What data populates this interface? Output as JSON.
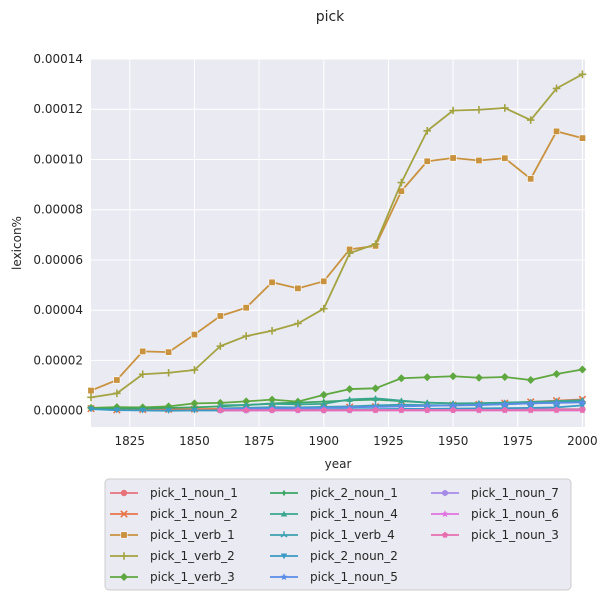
{
  "chart_data": {
    "type": "line",
    "title": "pick",
    "xlabel": "year",
    "ylabel": "lexicon%",
    "xlim": [
      1810,
      2001
    ],
    "ylim": [
      -6.5e-06,
      0.00014
    ],
    "x_ticks": [
      1825,
      1850,
      1875,
      1900,
      1925,
      1950,
      1975,
      2000
    ],
    "y_ticks": [
      0,
      2e-05,
      4e-05,
      6e-05,
      8e-05,
      0.0001,
      0.00012,
      0.00014
    ],
    "y_tick_labels": [
      "0.00000",
      "0.00002",
      "0.00004",
      "0.00006",
      "0.00008",
      "0.00010",
      "0.00012",
      "0.00014"
    ],
    "x_tick_labels": [
      "1825",
      "1850",
      "1875",
      "1900",
      "1925",
      "1950",
      "1975",
      "2000"
    ],
    "grid": true,
    "legend_position": "bottom",
    "x": [
      1810,
      1820,
      1830,
      1840,
      1850,
      1860,
      1870,
      1880,
      1890,
      1900,
      1910,
      1920,
      1930,
      1940,
      1950,
      1960,
      1970,
      1980,
      1990,
      2000
    ],
    "series": [
      {
        "name": "pick_1_noun_1",
        "color": "#e8727a",
        "marker": "circle",
        "values": [
          null,
          null,
          null,
          null,
          null,
          null,
          null,
          null,
          null,
          2e-07,
          3e-07,
          3e-07,
          4e-07,
          4e-07,
          4e-07,
          5e-07,
          5e-07,
          5e-07,
          6e-07,
          6e-07
        ]
      },
      {
        "name": "pick_1_noun_2",
        "color": "#e8754a",
        "marker": "x",
        "values": [
          8e-07,
          3e-07,
          4e-07,
          5e-07,
          6e-07,
          7e-07,
          8e-07,
          9e-07,
          1e-06,
          1.2e-06,
          1.4e-06,
          1.6e-06,
          1.8e-06,
          2e-06,
          2.2e-06,
          2.5e-06,
          3e-06,
          3.5e-06,
          4e-06,
          4.5e-06
        ]
      },
      {
        "name": "pick_1_verb_1",
        "color": "#c8923e",
        "marker": "square",
        "values": [
          8e-06,
          1.22e-05,
          2.36e-05,
          2.33e-05,
          3.03e-05,
          3.77e-05,
          4.1e-05,
          5.11e-05,
          4.87e-05,
          5.15e-05,
          6.42e-05,
          6.56e-05,
          8.74e-05,
          9.93e-05,
          0.0001006,
          9.96e-05,
          0.0001005,
          9.23e-05,
          0.0001112,
          0.0001085
        ]
      },
      {
        "name": "pick_1_verb_2",
        "color": "#a3a342",
        "marker": "plus",
        "values": [
          5.3e-06,
          6.9e-06,
          1.45e-05,
          1.51e-05,
          1.62e-05,
          2.57e-05,
          2.97e-05,
          3.18e-05,
          3.47e-05,
          4.06e-05,
          6.27e-05,
          6.63e-05,
          9.08e-05,
          0.0001114,
          0.0001195,
          0.0001198,
          0.0001205,
          0.0001157,
          0.0001283,
          0.0001339
        ]
      },
      {
        "name": "pick_1_verb_3",
        "color": "#5ea83f",
        "marker": "diamond",
        "values": [
          1.1e-06,
          1.4e-06,
          1.3e-06,
          1.7e-06,
          2.9e-06,
          3.1e-06,
          3.7e-06,
          4.4e-06,
          3.6e-06,
          6.3e-06,
          8.6e-06,
          8.9e-06,
          1.29e-05,
          1.33e-05,
          1.37e-05,
          1.31e-05,
          1.34e-05,
          1.22e-05,
          1.46e-05,
          1.64e-05
        ]
      },
      {
        "name": "pick_2_noun_1",
        "color": "#3aa564",
        "marker": "thin_diamond",
        "values": [
          8e-07,
          9e-07,
          9e-07,
          1.1e-06,
          1.3e-06,
          1.7e-06,
          2.2e-06,
          2.9e-06,
          3.2e-06,
          3.6e-06,
          4.1e-06,
          4.4e-06,
          3.8e-06,
          3.2e-06,
          2.9e-06,
          2.9e-06,
          3.1e-06,
          3.3e-06,
          3.6e-06,
          3.8e-06
        ]
      },
      {
        "name": "pick_1_noun_4",
        "color": "#39a68f",
        "marker": "triangle-up",
        "values": [
          null,
          null,
          null,
          null,
          null,
          2.1e-06,
          2.3e-06,
          2.7e-06,
          2.5e-06,
          2.7e-06,
          4.5e-06,
          4.9e-06,
          4e-06,
          3.2e-06,
          2.9e-06,
          3e-06,
          3.2e-06,
          3.5e-06,
          3.8e-06,
          4.2e-06
        ]
      },
      {
        "name": "pick_1_verb_4",
        "color": "#3aa1b0",
        "marker": "tri",
        "values": [
          null,
          null,
          null,
          null,
          null,
          9e-07,
          1.1e-06,
          1.4e-06,
          1.3e-06,
          1.5e-06,
          1.7e-06,
          2.1e-06,
          2.4e-06,
          2.2e-06,
          2.1e-06,
          2.2e-06,
          2.6e-06,
          2.9e-06,
          3.2e-06,
          3.5e-06
        ]
      },
      {
        "name": "pick_2_noun_2",
        "color": "#3a9ac4",
        "marker": "triangle-down",
        "values": [
          6e-07,
          2e-07,
          1e-07,
          0.0,
          1e-07,
          1e-07,
          2e-07,
          3e-07,
          3e-07,
          4e-07,
          5e-07,
          6e-07,
          7e-07,
          7e-07,
          8e-07,
          9e-07,
          1e-06,
          1.1e-06,
          1.3e-06,
          2.1e-06
        ]
      },
      {
        "name": "pick_1_noun_5",
        "color": "#5b8de8",
        "marker": "star",
        "values": [
          null,
          null,
          null,
          null,
          null,
          7e-07,
          8e-07,
          9e-07,
          1e-06,
          1.1e-06,
          1.3e-06,
          1.5e-06,
          1.7e-06,
          1.9e-06,
          2.1e-06,
          2.3e-06,
          2.6e-06,
          2.9e-06,
          3.1e-06,
          3.3e-06
        ]
      },
      {
        "name": "pick_1_noun_7",
        "color": "#a58ae8",
        "marker": "hexagon",
        "values": [
          null,
          null,
          null,
          null,
          null,
          1e-07,
          1e-07,
          2e-07,
          2e-07,
          2e-07,
          2e-07,
          3e-07,
          3e-07,
          3e-07,
          3e-07,
          3e-07,
          3e-07,
          4e-07,
          4e-07,
          4e-07
        ]
      },
      {
        "name": "pick_1_noun_6",
        "color": "#e074e0",
        "marker": "star",
        "values": [
          null,
          null,
          null,
          null,
          null,
          1e-07,
          1e-07,
          1e-07,
          1e-07,
          1e-07,
          1e-07,
          1e-07,
          1e-07,
          1e-07,
          1e-07,
          1e-07,
          1e-07,
          1e-07,
          1e-07,
          1e-07
        ]
      },
      {
        "name": "pick_1_noun_3",
        "color": "#e86eb0",
        "marker": "pentagon",
        "values": [
          null,
          null,
          null,
          null,
          null,
          2e-07,
          2e-07,
          2e-07,
          2e-07,
          2e-07,
          2e-07,
          2e-07,
          2e-07,
          2e-07,
          2e-07,
          2e-07,
          2e-07,
          2e-07,
          2e-07,
          2e-07
        ]
      }
    ]
  }
}
